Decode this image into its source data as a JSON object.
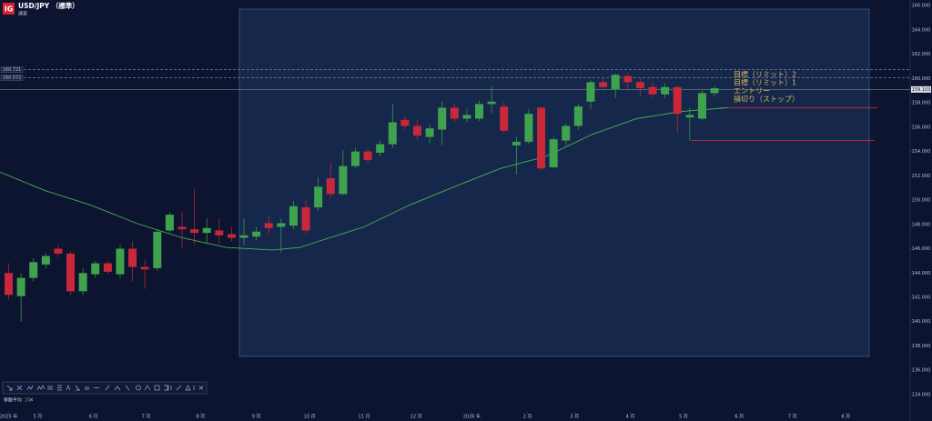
{
  "chart_data": {
    "type": "candlestick",
    "logo": "IG",
    "title": "USD/JPY （標準）",
    "subtitle": "通貨",
    "up_color": "#3fa34d",
    "down_color": "#c8283a",
    "open": [
      144.0,
      142.1,
      143.6,
      144.7,
      146.0,
      145.6,
      142.5,
      143.9,
      144.8,
      143.9,
      146.0,
      144.5,
      144.4,
      147.5,
      147.8,
      147.6,
      147.3,
      147.5,
      147.2,
      146.9,
      147.0,
      148.1,
      147.8,
      147.9,
      149.4,
      149.4,
      151.8,
      150.5,
      152.8,
      154.0,
      153.9,
      154.6,
      156.6,
      156.1,
      155.2,
      155.8,
      157.6,
      156.7,
      156.7,
      157.9,
      157.7,
      154.5,
      154.8,
      157.6,
      152.7,
      154.9,
      156.1,
      158.1,
      159.7,
      159.1,
      160.2,
      159.7,
      159.3,
      158.7,
      159.3,
      156.8,
      156.7,
      158.8
    ],
    "high": [
      144.8,
      144.0,
      145.2,
      145.6,
      146.3,
      145.8,
      144.4,
      145.0,
      145.0,
      146.3,
      146.6,
      145.1,
      147.6,
      149.0,
      149.1,
      150.9,
      148.5,
      148.5,
      147.8,
      148.5,
      147.8,
      148.7,
      148.5,
      149.9,
      150.0,
      151.9,
      153.1,
      154.1,
      154.3,
      154.3,
      154.9,
      157.9,
      156.9,
      156.6,
      156.2,
      158.1,
      157.9,
      157.5,
      158.2,
      159.4,
      158.1,
      155.2,
      157.5,
      157.7,
      155.2,
      156.3,
      157.9,
      159.9,
      160.1,
      160.4,
      160.5,
      160.0,
      159.7,
      159.6,
      159.4,
      157.6,
      159.0,
      159.4
    ],
    "low": [
      141.8,
      140.0,
      143.3,
      144.4,
      145.3,
      142.2,
      142.2,
      143.6,
      143.9,
      143.6,
      143.3,
      142.7,
      144.2,
      147.3,
      146.1,
      146.3,
      146.4,
      146.4,
      146.6,
      146.3,
      146.7,
      147.2,
      145.7,
      147.6,
      147.2,
      149.1,
      150.2,
      150.4,
      152.6,
      153.0,
      153.6,
      154.3,
      155.8,
      154.9,
      154.7,
      154.5,
      156.4,
      156.4,
      156.5,
      157.1,
      155.5,
      152.1,
      154.6,
      152.4,
      152.6,
      154.5,
      155.8,
      157.5,
      159.0,
      158.4,
      159.0,
      158.5,
      158.4,
      158.4,
      155.5,
      154.9,
      156.6,
      158.5
    ],
    "close": [
      142.2,
      143.6,
      144.9,
      145.4,
      145.6,
      142.5,
      144.0,
      144.8,
      144.1,
      146.0,
      144.5,
      144.3,
      147.4,
      148.8,
      147.6,
      147.3,
      147.7,
      147.1,
      146.9,
      147.1,
      147.4,
      147.7,
      148.1,
      149.5,
      147.5,
      151.1,
      150.5,
      152.8,
      154.0,
      153.3,
      154.6,
      156.4,
      156.1,
      155.3,
      155.9,
      157.6,
      156.7,
      157.0,
      157.9,
      158.1,
      155.7,
      154.8,
      157.1,
      152.6,
      155.0,
      156.1,
      157.7,
      159.7,
      159.3,
      160.3,
      159.7,
      159.2,
      158.7,
      159.3,
      157.1,
      157.0,
      158.8,
      159.2
    ],
    "indicator": {
      "label": "移動平均",
      "period": 20,
      "color": "#4caf50",
      "x": [
        -0.7,
        2.9,
        6.6,
        10.3,
        14.0,
        17.6,
        21.3,
        23.5,
        25.0,
        28.7,
        32.4,
        36.0,
        39.7,
        43.4,
        47.1,
        50.7,
        54.4,
        58.1
      ],
      "values": [
        152.3,
        150.8,
        149.6,
        148.1,
        146.9,
        146.1,
        145.9,
        146.1,
        146.6,
        147.8,
        149.6,
        151.1,
        152.6,
        153.6,
        155.4,
        156.7,
        157.3,
        157.6
      ]
    },
    "xlim": [
      -0.7,
      72.8
    ],
    "ylim": [
      132.65,
      166.46
    ],
    "xticks": [
      {
        "value": 0,
        "label": "2025 年"
      },
      {
        "value": 2.35,
        "label": "5 月"
      },
      {
        "value": 6.84,
        "label": "6 月"
      },
      {
        "value": 11.1,
        "label": "7 月"
      },
      {
        "value": 15.5,
        "label": "8 月"
      },
      {
        "value": 20.0,
        "label": "9 月"
      },
      {
        "value": 24.3,
        "label": "10 月"
      },
      {
        "value": 28.7,
        "label": "11 月"
      },
      {
        "value": 32.9,
        "label": "12 月"
      },
      {
        "value": 37.4,
        "label": "2026 年"
      },
      {
        "value": 41.9,
        "label": "2 月"
      },
      {
        "value": 45.7,
        "label": "3 月"
      },
      {
        "value": 50.2,
        "label": "4 月"
      },
      {
        "value": 54.5,
        "label": "5 月"
      },
      {
        "value": 59.0,
        "label": "6 月"
      },
      {
        "value": 63.3,
        "label": "7 月"
      },
      {
        "value": 67.6,
        "label": "8 月"
      }
    ],
    "yticks": [
      {
        "value": 134,
        "label": "134.000"
      },
      {
        "value": 136,
        "label": "136.000"
      },
      {
        "value": 138,
        "label": "138.000"
      },
      {
        "value": 140,
        "label": "140.000"
      },
      {
        "value": 142,
        "label": "142.000"
      },
      {
        "value": 144,
        "label": "144.000"
      },
      {
        "value": 146,
        "label": "146.000"
      },
      {
        "value": 148,
        "label": "148.000"
      },
      {
        "value": 150,
        "label": "150.000"
      },
      {
        "value": 152,
        "label": "152.000"
      },
      {
        "value": 154,
        "label": "154.000"
      },
      {
        "value": 156,
        "label": "156.000"
      },
      {
        "value": 158,
        "label": "158.000"
      },
      {
        "value": 160,
        "label": "160.000"
      },
      {
        "value": 162,
        "label": "162.000"
      },
      {
        "value": 164,
        "label": "164.000"
      },
      {
        "value": 166,
        "label": "166.000"
      }
    ],
    "dashed_levels": [
      160.721,
      160.072
    ],
    "current_price": 159.103,
    "stop_lines": [
      {
        "value": 157.6,
        "x": [
          57.4,
          70.2
        ],
        "color": "#c8283a"
      },
      {
        "value": 154.9,
        "x": [
          55.1,
          69.9
        ],
        "color": "#c8283a"
      }
    ],
    "order_labels": [
      "目標（リミット）2",
      "目標（リミット）1",
      "エントリー",
      "損切り（ストップ）"
    ],
    "order_label_color": "#d9b45a"
  }
}
